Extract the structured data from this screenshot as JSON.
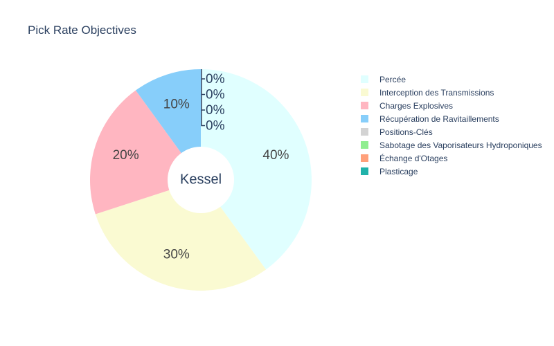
{
  "chart_data": {
    "type": "pie",
    "title": "Pick Rate Objectives",
    "center_label": "Kessel",
    "hole": true,
    "legend_position": "right",
    "slices": [
      {
        "label": "Percée",
        "value": 40,
        "display": "40%",
        "color": "#e0ffff"
      },
      {
        "label": "Interception des Transmissions",
        "value": 30,
        "display": "30%",
        "color": "#fafad2"
      },
      {
        "label": "Charges Explosives",
        "value": 20,
        "display": "20%",
        "color": "#ffb6c1"
      },
      {
        "label": "Récupération de Ravitaillements",
        "value": 10,
        "display": "10%",
        "color": "#87cefa"
      },
      {
        "label": "Positions-Clés",
        "value": 0,
        "display": "0%",
        "color": "#d3d3d3"
      },
      {
        "label": "Sabotage des Vaporisateurs Hydroponiques",
        "value": 0,
        "display": "0%",
        "color": "#90ee90"
      },
      {
        "label": "Échange d'Otages",
        "value": 0,
        "display": "0%",
        "color": "#ffa07a"
      },
      {
        "label": "Plasticage",
        "value": 0,
        "display": "0%",
        "color": "#20b2aa"
      }
    ]
  }
}
